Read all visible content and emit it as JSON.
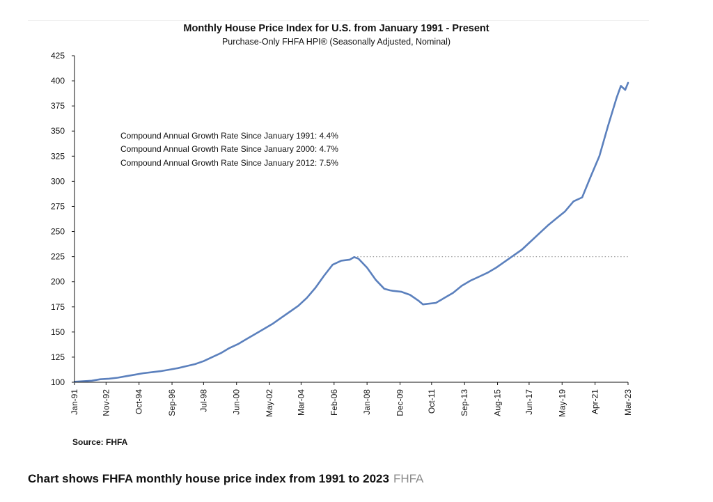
{
  "chart_data": {
    "type": "line",
    "title": "Monthly House Price Index for U.S. from January 1991 - Present",
    "subtitle": "Purchase-Only FHFA HPI® (Seasonally Adjusted, Nominal)",
    "xlabel": "",
    "ylabel": "",
    "ylim": [
      100,
      425
    ],
    "yticks": [
      100,
      125,
      150,
      175,
      200,
      225,
      250,
      275,
      300,
      325,
      350,
      375,
      400,
      425
    ],
    "xlim": [
      "1991-01",
      "2023-03"
    ],
    "xticks": [
      "Jan-91",
      "Nov-92",
      "Oct-94",
      "Sep-96",
      "Jul-98",
      "Jun-00",
      "May-02",
      "Mar-04",
      "Feb-06",
      "Jan-08",
      "Dec-09",
      "Oct-11",
      "Sep-13",
      "Aug-15",
      "Jun-17",
      "May-19",
      "Apr-21",
      "Mar-23"
    ],
    "grid": false,
    "line_color": "#5b80bd",
    "reference_line": {
      "y": 225,
      "from": "2007-04",
      "to": "2023-03",
      "style": "dotted",
      "color": "#9a9a9a"
    },
    "annotations": [
      "Compound Annual Growth Rate Since January 1991:  4.4%",
      "Compound Annual Growth Rate Since January 2000:  4.7%",
      "Compound Annual Growth Rate Since January 2012:  7.5%"
    ],
    "source": "Source: FHFA",
    "series": [
      {
        "x": [
          "1991-01",
          "1991-07",
          "1992-01",
          "1992-07",
          "1993-01",
          "1993-07",
          "1994-01",
          "1994-07",
          "1995-01",
          "1995-07",
          "1996-01",
          "1996-07",
          "1997-01",
          "1997-07",
          "1998-01",
          "1998-07",
          "1999-01",
          "1999-07",
          "2000-01",
          "2000-07",
          "2001-01",
          "2001-07",
          "2002-01",
          "2002-07",
          "2003-01",
          "2003-07",
          "2004-01",
          "2004-07",
          "2005-01",
          "2005-07",
          "2006-01",
          "2006-07",
          "2007-01",
          "2007-04",
          "2007-07",
          "2008-01",
          "2008-07",
          "2009-01",
          "2009-05",
          "2009-07",
          "2010-01",
          "2010-07",
          "2011-01",
          "2011-04",
          "2011-07",
          "2012-01",
          "2012-07",
          "2013-01",
          "2013-07",
          "2014-01",
          "2014-07",
          "2015-01",
          "2015-07",
          "2016-01",
          "2016-07",
          "2017-01",
          "2017-07",
          "2018-01",
          "2018-07",
          "2019-01",
          "2019-07",
          "2020-01",
          "2020-07",
          "2021-01",
          "2021-07",
          "2022-01",
          "2022-07",
          "2022-10",
          "2023-01",
          "2023-03"
        ],
        "values": [
          100.5,
          101,
          101.5,
          103,
          103.5,
          104.5,
          106,
          107.5,
          109,
          110,
          111,
          112.5,
          114,
          116,
          118,
          121,
          125,
          129,
          134,
          138,
          143,
          148,
          153,
          158,
          164,
          170,
          176,
          184,
          194,
          206,
          217,
          221,
          222,
          224.5,
          223,
          214,
          202,
          193,
          191.5,
          191,
          190,
          187,
          181,
          177.5,
          178,
          179,
          184,
          189,
          196,
          201,
          205,
          209,
          214,
          220,
          226,
          232,
          240,
          248,
          256,
          263,
          270,
          280,
          284,
          305,
          325,
          355,
          383,
          395,
          391,
          398
        ]
      }
    ]
  },
  "caption": {
    "text": "Chart shows FHFA monthly house price index from 1991 to 2023",
    "credit": "FHFA"
  }
}
